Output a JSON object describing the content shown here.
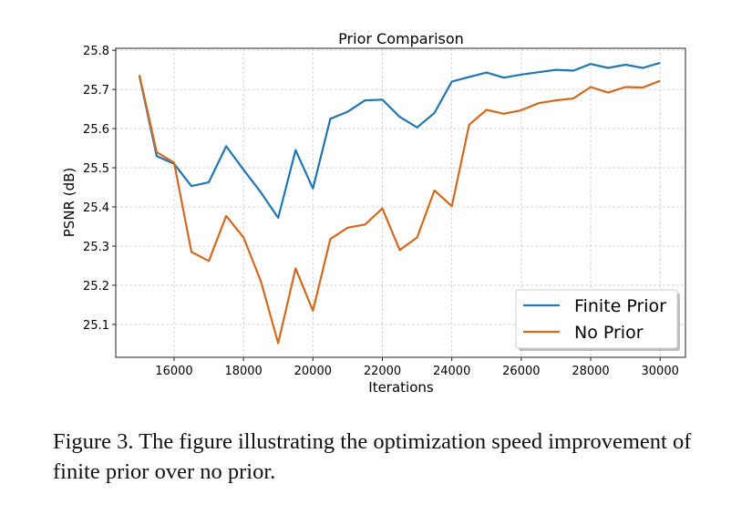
{
  "chart_data": {
    "type": "line",
    "title": "Prior Comparison",
    "xlabel": "Iterations",
    "ylabel": "PSNR (dB)",
    "xlim": [
      14320,
      30730
    ],
    "ylim": [
      25.016,
      25.805
    ],
    "xticks": [
      16000,
      18000,
      20000,
      22000,
      24000,
      26000,
      28000,
      30000
    ],
    "yticks": [
      25.1,
      25.2,
      25.3,
      25.4,
      25.5,
      25.6,
      25.7,
      25.8
    ],
    "ytick_labels": [
      "25.1",
      "25.2",
      "25.3",
      "25.4",
      "25.5",
      "25.6",
      "25.7",
      "25.8"
    ],
    "grid": true,
    "legend_placement": "lower-right",
    "x": [
      15000,
      15500,
      16000,
      16500,
      17000,
      17500,
      18000,
      18500,
      19000,
      19500,
      20000,
      20500,
      21000,
      21500,
      22000,
      22500,
      23000,
      23500,
      24000,
      24500,
      25000,
      25500,
      26000,
      26500,
      27000,
      27500,
      28000,
      28500,
      29000,
      29500,
      30000
    ],
    "series": [
      {
        "name": "Finite Prior",
        "color": "#1f77b4",
        "values": [
          25.735,
          25.53,
          25.51,
          25.453,
          25.463,
          25.555,
          25.495,
          25.437,
          25.372,
          25.545,
          25.447,
          25.625,
          25.643,
          25.672,
          25.674,
          25.63,
          25.603,
          25.64,
          25.72,
          25.732,
          25.743,
          25.73,
          25.738,
          25.744,
          25.75,
          25.748,
          25.765,
          25.755,
          25.763,
          25.755,
          25.768
        ]
      },
      {
        "name": "No Prior",
        "color": "#d2691e",
        "values": [
          25.737,
          25.54,
          25.513,
          25.285,
          25.262,
          25.377,
          25.322,
          25.21,
          25.052,
          25.243,
          25.135,
          25.318,
          25.347,
          25.355,
          25.396,
          25.29,
          25.322,
          25.442,
          25.402,
          25.61,
          25.648,
          25.638,
          25.647,
          25.665,
          25.672,
          25.677,
          25.706,
          25.692,
          25.706,
          25.705,
          25.722
        ]
      }
    ]
  },
  "caption": "Figure 3.  The figure illustrating the optimization speed improvement of finite prior over no prior."
}
